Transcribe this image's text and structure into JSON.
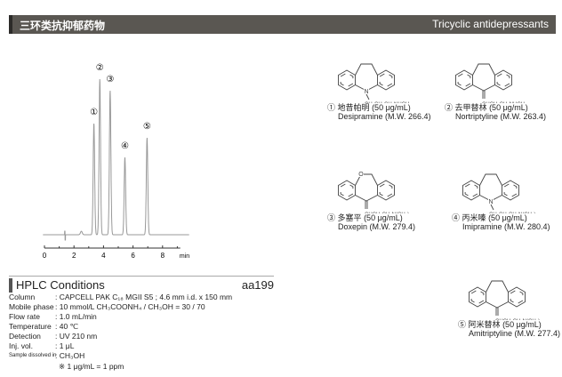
{
  "header": {
    "title_cn": "三环类抗抑郁药物",
    "title_en": "Tricyclic antidepressants",
    "bar_color": "#5a5752"
  },
  "chart_data": {
    "type": "line",
    "title": "",
    "xlabel": "min",
    "ylabel": "",
    "x_ticks": [
      "0",
      "2",
      "4",
      "6",
      "8"
    ],
    "xlim": [
      0,
      9.5
    ],
    "grid": false,
    "line_color": "#999999",
    "peaks": [
      {
        "label": "①",
        "retention_time_min": 3.35,
        "relative_height": 125
      },
      {
        "label": "②",
        "retention_time_min": 3.75,
        "relative_height": 175
      },
      {
        "label": "③",
        "retention_time_min": 4.45,
        "relative_height": 162
      },
      {
        "label": "④",
        "retention_time_min": 5.45,
        "relative_height": 87
      },
      {
        "label": "⑤",
        "retention_time_min": 6.95,
        "relative_height": 109
      }
    ]
  },
  "conditions": {
    "title": "HPLC Conditions",
    "code": "aa199",
    "rows": [
      {
        "k": "Column",
        "v": ": CAPCELL PAK C₁₈ MGII S5 ; 4.6 mm i.d. x 150 mm"
      },
      {
        "k": "Mobile phase",
        "v": ": 10 mmol/L CH₃COONH₄ / CH₃OH = 30 / 70"
      },
      {
        "k": "Flow rate",
        "v": ": 1.0 mL/min"
      },
      {
        "k": "Temperature",
        "v": ": 40 ℃"
      },
      {
        "k": "Detection",
        "v": ": UV 210 nm"
      },
      {
        "k": "Inj. vol.",
        "v": ": 1 μL"
      },
      {
        "k": "Sample dissolved in",
        "v": ": CH₃OH"
      }
    ],
    "note": "※ 1 μg/mL = 1 ppm"
  },
  "compounds": [
    {
      "num": "①",
      "cn": "地昔帕明",
      "conc": "(50 μg/mL)",
      "en": "Desipramine (M.W. 266.4)",
      "bridge": "CH2CH2",
      "center": "N",
      "chain": "CH₂CH₂CH₂NHCH₃"
    },
    {
      "num": "②",
      "cn": "去甲替林",
      "conc": "(50 μg/mL)",
      "en": "Nortriptyline (M.W. 263.4)",
      "bridge": "CH2CH2",
      "center": "C",
      "chain": "CHCH₂CH₂NHCH₃"
    },
    {
      "num": "③",
      "cn": "多塞平",
      "conc": "(50 μg/mL)",
      "en": "Doxepin (M.W. 279.4)",
      "bridge": "O",
      "center": "C",
      "chain": "CHCH₂CH₂N(CH₃)₂",
      "bridge_atom": "O"
    },
    {
      "num": "④",
      "cn": "丙米嗪",
      "conc": "(50 μg/mL)",
      "en": "Imipramine (M.W. 280.4)",
      "bridge": "CH2CH2",
      "center": "N",
      "chain": "CH₂CH₂CH₂N(CH₃)₂"
    },
    {
      "num": "⑤",
      "cn": "阿米替林",
      "conc": "(50 μg/mL)",
      "en": "Amitriptyline (M.W. 277.4)",
      "bridge": "CH2CH2",
      "center": "C",
      "chain": "CHCH₂CH₂N(CH₃)₂"
    }
  ]
}
